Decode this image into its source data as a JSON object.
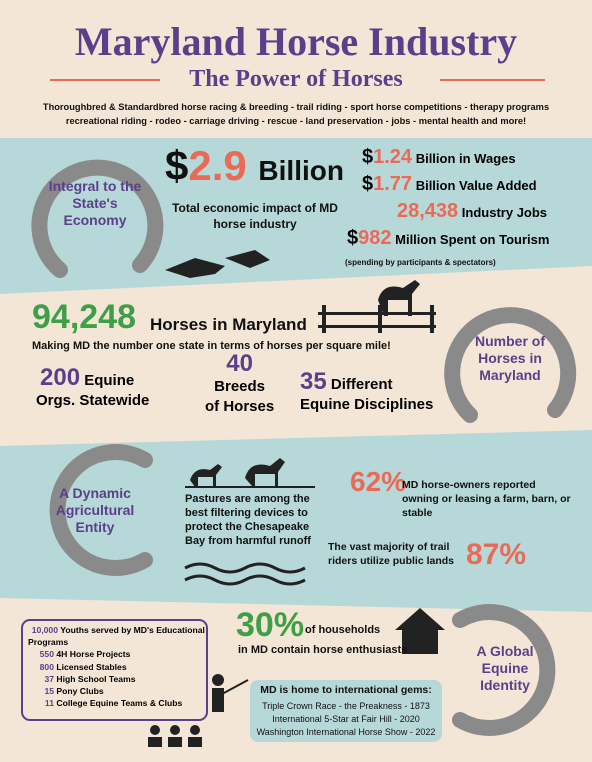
{
  "header": {
    "title": "Maryland Horse Industry",
    "subtitle": "The Power of Horses",
    "intro": [
      "Thoroughbred & Standardbred horse racing & breeding - trail riding - sport horse competitions - therapy programs",
      "recreational riding - rodeo - carriage driving - rescue - land preservation - jobs - mental health and more!"
    ]
  },
  "economy": {
    "label": "Integral to the State's Economy",
    "headline": {
      "prefix": "$",
      "value": "2.9",
      "unit": "Billion",
      "caption": "Total economic impact of MD horse industry"
    },
    "items": [
      {
        "prefix": "$",
        "value": "1.24",
        "label": "Billion in Wages"
      },
      {
        "prefix": "$",
        "value": "1.77",
        "label": "Billion Value Added"
      },
      {
        "value": "28,438",
        "label": "Industry Jobs"
      },
      {
        "prefix": "$",
        "value": "982",
        "label": "Million Spent on Tourism"
      }
    ],
    "note": "(spending by participants & spectators)"
  },
  "horses": {
    "label": "Number of Horses in Maryland",
    "count": "94,248",
    "count_label": "Horses in Maryland",
    "subtitle": "Making MD the number one state in terms of horses per square mile!",
    "stats": [
      {
        "value": "200",
        "label_1": "Equine",
        "label_2": "Orgs. Statewide"
      },
      {
        "value": "40",
        "label_1": "Breeds",
        "label_2": "of Horses"
      },
      {
        "value": "35",
        "label_1": "Different",
        "label_2": "Equine Disciplines"
      }
    ]
  },
  "agriculture": {
    "label": "A Dynamic Agricultural Entity",
    "pastures": "Pastures are among the best filtering devices to protect the Chesapeake Bay from harmful runoff",
    "owners": {
      "value": "62%",
      "text": "MD horse-owners reported owning or leasing a farm, barn, or stable"
    },
    "trails": {
      "value": "87%",
      "text": "The vast majority of trail riders utilize public lands"
    }
  },
  "global": {
    "label": "A Global Equine Identity",
    "education": [
      {
        "value": "10,000",
        "label": "Youths served by MD's Educational Programs"
      },
      {
        "value": "550",
        "label": "4H Horse Projects"
      },
      {
        "value": "800",
        "label": "Licensed Stables"
      },
      {
        "value": "37",
        "label": "High School Teams"
      },
      {
        "value": "15",
        "label": "Pony Clubs"
      },
      {
        "value": "11",
        "label": "College Equine Teams & Clubs"
      }
    ],
    "households": {
      "value": "30%",
      "text_1": "of households",
      "text_2": "in MD contain horse enthusiasts"
    },
    "gems": {
      "title": "MD is home to international gems:",
      "items": [
        "Triple Crown Race - the Preakness - 1873",
        "International 5-Star at Fair Hill - 2020",
        "Washington International Horse Show - 2022"
      ]
    }
  }
}
